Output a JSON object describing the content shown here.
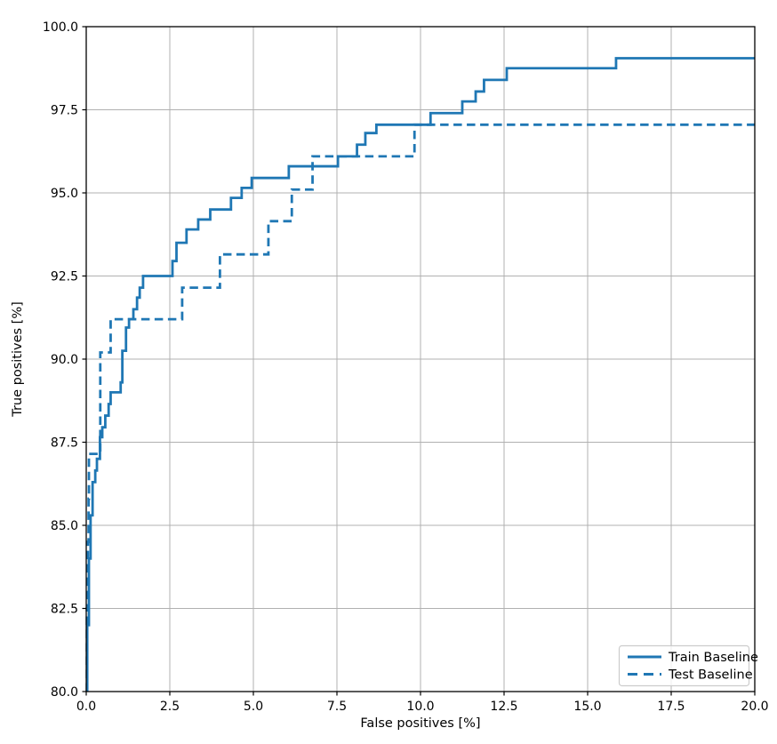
{
  "chart_data": {
    "type": "line",
    "subtype": "step-roc",
    "title": "",
    "xlabel": "False positives [%]",
    "ylabel": "True positives [%]",
    "xlim": [
      0,
      20
    ],
    "ylim": [
      80,
      100
    ],
    "x_tick_values": [
      0.0,
      2.5,
      5.0,
      7.5,
      10.0,
      12.5,
      15.0,
      17.5,
      20.0
    ],
    "x_tick_labels": [
      "0.0",
      "2.5",
      "5.0",
      "7.5",
      "10.0",
      "12.5",
      "15.0",
      "17.5",
      "20.0"
    ],
    "y_tick_values": [
      80.0,
      82.5,
      85.0,
      87.5,
      90.0,
      92.5,
      95.0,
      97.5,
      100.0
    ],
    "y_tick_labels": [
      "80.0",
      "82.5",
      "85.0",
      "87.5",
      "90.0",
      "92.5",
      "95.0",
      "97.5",
      "100.0"
    ],
    "grid": true,
    "legend_position": "lower right",
    "colors": {
      "line": "#1f77b4",
      "grid": "#b0b0b0",
      "spine": "#000000",
      "legend_border": "#cccccc",
      "background": "#ffffff"
    },
    "series": [
      {
        "name": "Train Baseline",
        "style": "solid",
        "points": [
          [
            0.03,
            80.0
          ],
          [
            0.03,
            82.0
          ],
          [
            0.08,
            82.0
          ],
          [
            0.08,
            84.0
          ],
          [
            0.13,
            84.0
          ],
          [
            0.13,
            85.3
          ],
          [
            0.19,
            85.3
          ],
          [
            0.19,
            86.3
          ],
          [
            0.27,
            86.3
          ],
          [
            0.27,
            86.65
          ],
          [
            0.32,
            86.65
          ],
          [
            0.32,
            87.0
          ],
          [
            0.41,
            87.0
          ],
          [
            0.41,
            87.65
          ],
          [
            0.48,
            87.65
          ],
          [
            0.48,
            87.95
          ],
          [
            0.57,
            87.95
          ],
          [
            0.57,
            88.3
          ],
          [
            0.67,
            88.3
          ],
          [
            0.67,
            88.65
          ],
          [
            0.73,
            88.65
          ],
          [
            0.73,
            89.0
          ],
          [
            1.03,
            89.0
          ],
          [
            1.03,
            89.3
          ],
          [
            1.08,
            89.3
          ],
          [
            1.08,
            90.25
          ],
          [
            1.19,
            90.25
          ],
          [
            1.19,
            90.95
          ],
          [
            1.28,
            90.95
          ],
          [
            1.28,
            91.2
          ],
          [
            1.41,
            91.2
          ],
          [
            1.41,
            91.5
          ],
          [
            1.52,
            91.5
          ],
          [
            1.52,
            91.85
          ],
          [
            1.6,
            91.85
          ],
          [
            1.6,
            92.15
          ],
          [
            1.7,
            92.15
          ],
          [
            1.7,
            92.5
          ],
          [
            2.58,
            92.5
          ],
          [
            2.58,
            92.95
          ],
          [
            2.7,
            92.95
          ],
          [
            2.7,
            93.5
          ],
          [
            3.0,
            93.5
          ],
          [
            3.0,
            93.9
          ],
          [
            3.35,
            93.9
          ],
          [
            3.35,
            94.2
          ],
          [
            3.71,
            94.2
          ],
          [
            3.71,
            94.5
          ],
          [
            4.33,
            94.5
          ],
          [
            4.33,
            94.85
          ],
          [
            4.65,
            94.85
          ],
          [
            4.65,
            95.15
          ],
          [
            4.95,
            95.15
          ],
          [
            4.95,
            95.45
          ],
          [
            6.06,
            95.45
          ],
          [
            6.06,
            95.8
          ],
          [
            7.53,
            95.8
          ],
          [
            7.53,
            96.1
          ],
          [
            8.1,
            96.1
          ],
          [
            8.1,
            96.45
          ],
          [
            8.35,
            96.45
          ],
          [
            8.35,
            96.8
          ],
          [
            8.68,
            96.8
          ],
          [
            8.68,
            97.05
          ],
          [
            10.3,
            97.05
          ],
          [
            10.3,
            97.4
          ],
          [
            11.25,
            97.4
          ],
          [
            11.25,
            97.75
          ],
          [
            11.65,
            97.75
          ],
          [
            11.65,
            98.05
          ],
          [
            11.9,
            98.05
          ],
          [
            11.9,
            98.4
          ],
          [
            12.58,
            98.4
          ],
          [
            12.58,
            98.75
          ],
          [
            15.85,
            98.75
          ],
          [
            15.85,
            99.05
          ],
          [
            20.0,
            99.05
          ]
        ]
      },
      {
        "name": "Test Baseline",
        "style": "dashed",
        "points": [
          [
            0.02,
            80.0
          ],
          [
            0.02,
            82.5
          ],
          [
            0.05,
            82.5
          ],
          [
            0.05,
            84.5
          ],
          [
            0.07,
            84.5
          ],
          [
            0.07,
            85.8
          ],
          [
            0.08,
            85.8
          ],
          [
            0.08,
            87.15
          ],
          [
            0.42,
            87.15
          ],
          [
            0.42,
            90.2
          ],
          [
            0.73,
            90.2
          ],
          [
            0.73,
            91.2
          ],
          [
            2.87,
            91.2
          ],
          [
            2.87,
            92.15
          ],
          [
            4.0,
            92.15
          ],
          [
            4.0,
            93.15
          ],
          [
            5.45,
            93.15
          ],
          [
            5.45,
            94.15
          ],
          [
            6.15,
            94.15
          ],
          [
            6.15,
            95.1
          ],
          [
            6.77,
            95.1
          ],
          [
            6.77,
            96.1
          ],
          [
            9.82,
            96.1
          ],
          [
            9.82,
            97.05
          ],
          [
            20.0,
            97.05
          ]
        ]
      }
    ]
  }
}
